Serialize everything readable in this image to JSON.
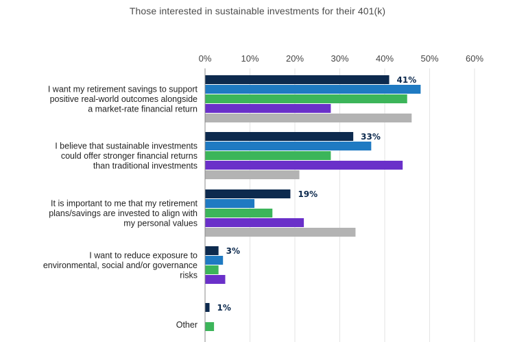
{
  "chart_data": {
    "type": "bar",
    "orientation": "horizontal",
    "title": "Those interested in sustainable investments for their 401(k)",
    "xlim": [
      0,
      60
    ],
    "x_ticks": [
      "0%",
      "10%",
      "20%",
      "30%",
      "40%",
      "50%",
      "60%"
    ],
    "grid": true,
    "categories": [
      [
        "I want my retirement savings to support",
        "positive real-world outcomes alongside",
        "a market-rate financial return"
      ],
      [
        "I believe that sustainable investments",
        "could offer stronger financial returns",
        "than traditional investments"
      ],
      [
        "It is important to me that my retirement",
        "plans/savings are invested to align with",
        "my personal values"
      ],
      [
        "I want to reduce exposure to",
        "environmental, social and/or governance",
        "risks"
      ],
      [
        "Other"
      ]
    ],
    "series": [
      {
        "color": "#0d2a4e",
        "values": [
          41,
          33,
          19,
          3,
          1
        ],
        "labels": [
          "41%",
          "33%",
          "19%",
          "3%",
          "1%"
        ]
      },
      {
        "color": "#1f7ac2",
        "values": [
          48,
          37,
          11,
          4,
          0
        ]
      },
      {
        "color": "#3cb55a",
        "values": [
          45,
          28,
          15,
          3,
          2
        ]
      },
      {
        "color": "#6a30c9",
        "values": [
          28,
          44,
          22,
          4.5,
          0
        ]
      },
      {
        "color": "#b3b3b3",
        "values": [
          46,
          21,
          33.5,
          0,
          0
        ]
      }
    ]
  }
}
